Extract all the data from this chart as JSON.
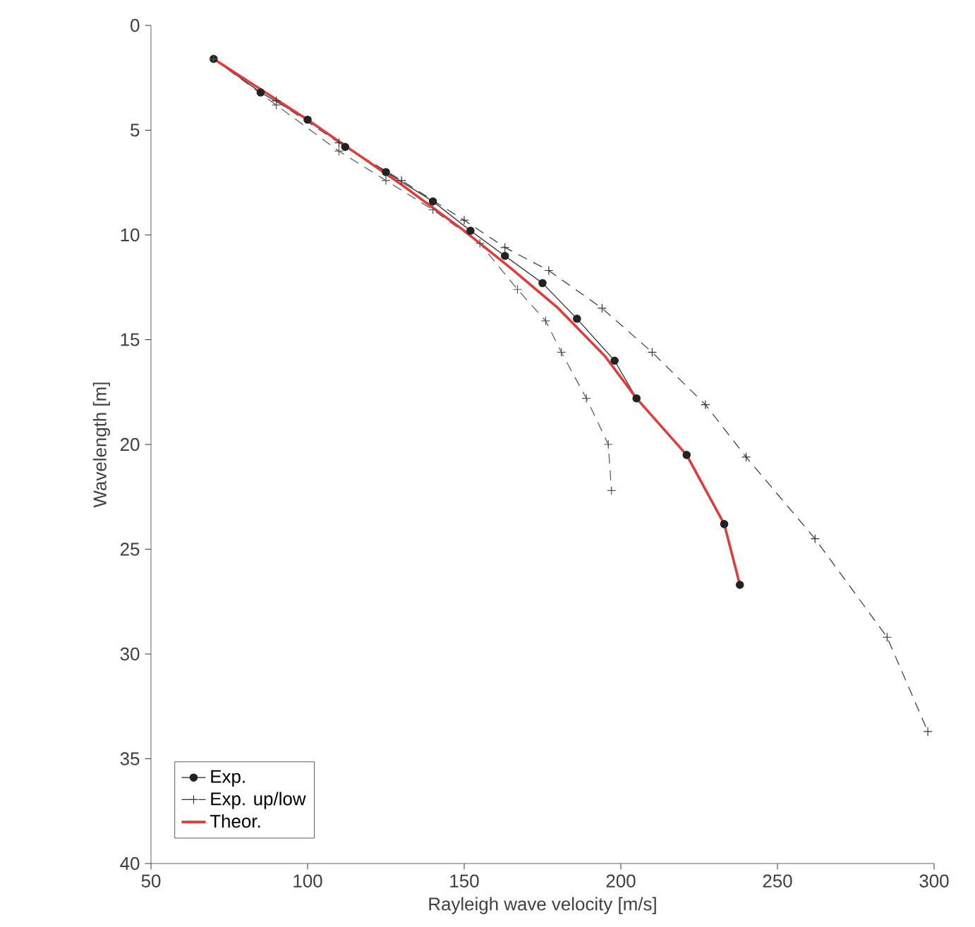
{
  "chart_data": {
    "type": "line",
    "xlabel": "Rayleigh wave velocity [m/s]",
    "ylabel": "Wavelength [m]",
    "xlim": [
      50,
      300
    ],
    "xticks": [
      50,
      100,
      150,
      200,
      250,
      300
    ],
    "ylim": [
      40,
      0
    ],
    "yticks": [
      0,
      5,
      10,
      15,
      20,
      25,
      30,
      35,
      40
    ],
    "legend": "bottom left",
    "grid": false,
    "series": [
      {
        "name": "Exp.",
        "color": "#222222",
        "marker": "circle",
        "line_style": "solid",
        "x": [
          70,
          85,
          100,
          112,
          125,
          140,
          152,
          163,
          175,
          186,
          198,
          205,
          221,
          233,
          238
        ],
        "values": [
          1.6,
          3.2,
          4.5,
          5.8,
          7,
          8.4,
          9.8,
          11,
          12.3,
          14,
          16,
          17.8,
          20.5,
          23.8,
          26.7
        ]
      },
      {
        "name": "Exp. up/low",
        "color": "#333333",
        "marker": "cross",
        "line_style": "dashed",
        "x": [
          90,
          110,
          130,
          150,
          163,
          177,
          194,
          210,
          227,
          240,
          262,
          285,
          298
        ],
        "values": [
          3.6,
          5.6,
          7.4,
          9.3,
          10.6,
          11.7,
          13.5,
          15.6,
          18.1,
          20.6,
          24.5,
          29.2,
          33.7
        ]
      },
      {
        "color": "#555555",
        "marker": "cross",
        "line_style": "dashed",
        "x": [
          70,
          90,
          110,
          125,
          140,
          155,
          167,
          176,
          181,
          189,
          196,
          197
        ],
        "values": [
          1.6,
          3.8,
          6,
          7.4,
          8.8,
          10.4,
          12.6,
          14.1,
          15.6,
          17.8,
          20,
          22.2
        ]
      },
      {
        "name": "Theor.",
        "color": "#e03c3c",
        "marker": "none",
        "line_style": "solid",
        "x": [
          70,
          100,
          130,
          150,
          165,
          180,
          195,
          205,
          221,
          233,
          238
        ],
        "values": [
          1.6,
          4.5,
          7.6,
          9.8,
          11.6,
          13.5,
          15.8,
          17.8,
          20.5,
          23.8,
          26.7
        ]
      }
    ]
  }
}
